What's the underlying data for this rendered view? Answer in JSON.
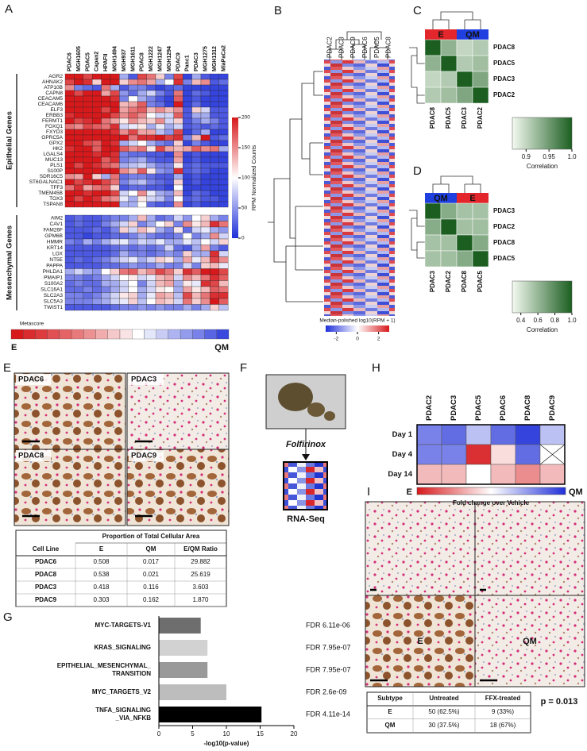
{
  "panel_a": {
    "label": "A",
    "columns": [
      "PDAC6",
      "MGH1605",
      "PDAC5",
      "Capan2",
      "HPAFII",
      "MGH1494",
      "MGH937",
      "MGH1611",
      "PDAC8",
      "MGH1222",
      "MGH1247",
      "MGH1294",
      "PDAC9",
      "Panc1",
      "PDAC3",
      "MGH1275",
      "MGH1312",
      "MiaPaCa2"
    ],
    "epithelial": {
      "title": "Epithelial  Genes",
      "genes": [
        "AGR2",
        "AHNAK2",
        "ATP10B",
        "CAPN8",
        "CEACAM5",
        "CEACAM6",
        "ELF3",
        "ERBB3",
        "FERMT1",
        "FOXQ1",
        "FXYD3",
        "GPRC5A",
        "GPX2",
        "HK2",
        "LGALS4",
        "MUC13",
        "PLS1",
        "S100P",
        "SDR16C5",
        "ST6GALNAC1",
        "TFF3",
        "TMEM45B",
        "TOX3",
        "TSPAN8"
      ],
      "values": [
        [
          200,
          200,
          180,
          200,
          200,
          200,
          60,
          20,
          180,
          160,
          120,
          40,
          180,
          10,
          60,
          20,
          10,
          10
        ],
        [
          180,
          200,
          190,
          120,
          200,
          200,
          120,
          150,
          160,
          140,
          60,
          100,
          190,
          40,
          130,
          150,
          20,
          30
        ],
        [
          150,
          40,
          30,
          20,
          160,
          60,
          20,
          40,
          40,
          20,
          10,
          20,
          30,
          10,
          10,
          10,
          10,
          10
        ],
        [
          200,
          180,
          200,
          200,
          140,
          180,
          50,
          30,
          60,
          80,
          40,
          20,
          160,
          10,
          30,
          20,
          10,
          10
        ],
        [
          200,
          200,
          200,
          200,
          200,
          190,
          40,
          100,
          60,
          40,
          20,
          10,
          170,
          10,
          20,
          10,
          10,
          10
        ],
        [
          200,
          200,
          200,
          200,
          200,
          200,
          130,
          140,
          170,
          40,
          30,
          10,
          200,
          10,
          30,
          10,
          10,
          10
        ],
        [
          200,
          200,
          200,
          200,
          180,
          200,
          140,
          160,
          170,
          130,
          150,
          130,
          150,
          20,
          120,
          80,
          20,
          20
        ],
        [
          190,
          200,
          200,
          200,
          200,
          180,
          150,
          170,
          150,
          100,
          80,
          80,
          170,
          20,
          60,
          60,
          20,
          20
        ],
        [
          200,
          180,
          190,
          200,
          160,
          140,
          110,
          150,
          130,
          120,
          150,
          80,
          120,
          20,
          40,
          60,
          40,
          20
        ],
        [
          160,
          150,
          180,
          170,
          160,
          190,
          80,
          90,
          110,
          60,
          90,
          60,
          80,
          20,
          30,
          20,
          30,
          20
        ],
        [
          200,
          200,
          200,
          200,
          200,
          190,
          150,
          180,
          140,
          140,
          70,
          50,
          180,
          10,
          30,
          60,
          10,
          10
        ],
        [
          200,
          200,
          200,
          200,
          200,
          200,
          200,
          160,
          190,
          190,
          200,
          180,
          190,
          40,
          130,
          200,
          20,
          30
        ],
        [
          200,
          200,
          180,
          170,
          200,
          190,
          60,
          80,
          100,
          60,
          40,
          30,
          120,
          10,
          40,
          20,
          10,
          10
        ],
        [
          190,
          200,
          200,
          170,
          200,
          200,
          170,
          150,
          160,
          110,
          180,
          140,
          130,
          140,
          170,
          150,
          160,
          60
        ],
        [
          200,
          200,
          200,
          190,
          200,
          190,
          40,
          30,
          30,
          20,
          20,
          10,
          150,
          10,
          20,
          10,
          10,
          10
        ],
        [
          200,
          200,
          200,
          200,
          170,
          190,
          40,
          50,
          60,
          30,
          20,
          20,
          140,
          10,
          20,
          10,
          10,
          10
        ],
        [
          200,
          180,
          200,
          190,
          170,
          160,
          60,
          70,
          80,
          60,
          40,
          40,
          110,
          20,
          30,
          20,
          20,
          20
        ],
        [
          200,
          200,
          200,
          200,
          200,
          200,
          150,
          130,
          170,
          110,
          50,
          40,
          190,
          20,
          30,
          20,
          10,
          10
        ],
        [
          150,
          140,
          200,
          120,
          60,
          160,
          30,
          40,
          40,
          30,
          20,
          20,
          60,
          10,
          20,
          10,
          10,
          10
        ],
        [
          200,
          180,
          190,
          200,
          180,
          160,
          40,
          60,
          70,
          40,
          30,
          20,
          120,
          10,
          20,
          10,
          10,
          10
        ],
        [
          160,
          190,
          140,
          160,
          170,
          120,
          20,
          30,
          30,
          20,
          20,
          10,
          100,
          10,
          10,
          10,
          10,
          10
        ],
        [
          200,
          200,
          190,
          200,
          200,
          180,
          80,
          100,
          150,
          90,
          60,
          50,
          130,
          10,
          30,
          20,
          10,
          10
        ],
        [
          200,
          180,
          200,
          190,
          160,
          150,
          90,
          60,
          110,
          80,
          70,
          40,
          100,
          20,
          30,
          20,
          20,
          10
        ],
        [
          200,
          200,
          200,
          200,
          200,
          200,
          60,
          60,
          100,
          30,
          20,
          20,
          150,
          10,
          20,
          10,
          10,
          10
        ]
      ]
    },
    "mesenchymal": {
      "title": "Mesenchymal  Genes",
      "genes": [
        "AIM2",
        "CAV1",
        "FAM26F",
        "GPM6B",
        "HMMR",
        "KRT14",
        "LOX",
        "NT5E",
        "PAPPA",
        "PHLDA1",
        "PMAIP1",
        "S100A2",
        "SLC16A1",
        "SLC2A3",
        "SLC5A3",
        "TWIST1"
      ],
      "values": [
        [
          20,
          30,
          20,
          20,
          30,
          40,
          40,
          60,
          130,
          60,
          30,
          40,
          80,
          50,
          100,
          120,
          60,
          40
        ],
        [
          20,
          30,
          20,
          20,
          40,
          60,
          80,
          120,
          40,
          60,
          100,
          120,
          40,
          150,
          110,
          130,
          190,
          160
        ],
        [
          20,
          20,
          20,
          30,
          20,
          40,
          120,
          80,
          130,
          110,
          60,
          40,
          110,
          30,
          80,
          90,
          60,
          50
        ],
        [
          20,
          20,
          10,
          20,
          20,
          30,
          30,
          40,
          60,
          40,
          30,
          30,
          40,
          100,
          40,
          60,
          150,
          80
        ],
        [
          40,
          30,
          60,
          40,
          60,
          80,
          90,
          60,
          80,
          70,
          90,
          60,
          60,
          90,
          70,
          100,
          80,
          120
        ],
        [
          20,
          20,
          20,
          20,
          20,
          30,
          40,
          30,
          40,
          30,
          40,
          80,
          30,
          20,
          60,
          140,
          40,
          20
        ],
        [
          20,
          20,
          20,
          20,
          20,
          30,
          60,
          40,
          40,
          30,
          40,
          50,
          40,
          120,
          60,
          60,
          190,
          80
        ],
        [
          20,
          30,
          20,
          30,
          40,
          60,
          80,
          90,
          60,
          80,
          120,
          110,
          60,
          140,
          90,
          130,
          180,
          150
        ],
        [
          20,
          20,
          20,
          20,
          30,
          30,
          40,
          50,
          40,
          40,
          60,
          40,
          40,
          80,
          40,
          120,
          130,
          90
        ],
        [
          60,
          80,
          60,
          50,
          100,
          120,
          160,
          170,
          130,
          150,
          180,
          160,
          120,
          190,
          170,
          200,
          200,
          180
        ],
        [
          40,
          40,
          30,
          40,
          60,
          80,
          100,
          110,
          80,
          90,
          130,
          140,
          80,
          150,
          130,
          160,
          190,
          170
        ],
        [
          30,
          40,
          30,
          30,
          60,
          60,
          80,
          100,
          40,
          80,
          130,
          140,
          60,
          110,
          90,
          190,
          180,
          130
        ],
        [
          30,
          30,
          40,
          30,
          40,
          60,
          80,
          100,
          60,
          80,
          110,
          100,
          60,
          140,
          110,
          130,
          170,
          160
        ],
        [
          40,
          40,
          30,
          40,
          60,
          80,
          110,
          120,
          60,
          90,
          140,
          130,
          70,
          180,
          130,
          160,
          190,
          190
        ],
        [
          40,
          40,
          40,
          50,
          60,
          80,
          90,
          120,
          70,
          100,
          130,
          120,
          80,
          160,
          120,
          150,
          200,
          170
        ],
        [
          20,
          20,
          20,
          20,
          20,
          30,
          40,
          40,
          50,
          40,
          50,
          40,
          40,
          60,
          40,
          60,
          120,
          70
        ]
      ]
    },
    "colorbar": {
      "title": "RPM Normalized Counts",
      "lim": [
        0,
        200
      ],
      "ticks": [
        0,
        50,
        100,
        150,
        200
      ]
    },
    "metascore": {
      "label": "Metascore",
      "values": [
        200,
        192,
        185,
        176,
        168,
        158,
        148,
        136,
        124,
        112,
        100,
        88,
        76,
        64,
        52,
        40,
        26,
        12
      ],
      "left": "E",
      "right": "QM"
    }
  },
  "panel_b": {
    "label": "B",
    "columns": [
      "PDAC2",
      "PDAC3",
      "PDAC9",
      "PDAC6",
      "PDAC5",
      "PDAC8"
    ],
    "colorbar": {
      "title": "Median-polished log10(RPM + 1)",
      "lim": [
        -3,
        3
      ],
      "ticks": [
        -2,
        0,
        2
      ]
    }
  },
  "panel_c": {
    "label": "C",
    "rows": [
      "PDAC8",
      "PDAC5",
      "PDAC3",
      "PDAC2"
    ],
    "groups": [
      {
        "label": "E",
        "color": "#e3262b"
      },
      {
        "label": "QM",
        "color": "#1f3fe0"
      }
    ],
    "values": [
      [
        1,
        0.93,
        0.9,
        0.91
      ],
      [
        0.93,
        1,
        0.91,
        0.92
      ],
      [
        0.9,
        0.91,
        1,
        0.94
      ],
      [
        0.91,
        0.92,
        0.94,
        1
      ]
    ],
    "colorbar": {
      "title": "Correlation",
      "lim": [
        0.87,
        1
      ],
      "ticks": [
        0.9,
        0.95,
        {
          "value": 1,
          "label": "1.0"
        }
      ]
    }
  },
  "panel_d": {
    "label": "D",
    "rows": [
      "PDAC3",
      "PDAC2",
      "PDAC8",
      "PDAC5"
    ],
    "groups": [
      {
        "label": "QM",
        "color": "#1f3fe0"
      },
      {
        "label": "E",
        "color": "#e3262b"
      }
    ],
    "values": [
      [
        1,
        0.65,
        0.55,
        0.55
      ],
      [
        0.65,
        1,
        0.56,
        0.57
      ],
      [
        0.55,
        0.56,
        1,
        0.66
      ],
      [
        0.55,
        0.57,
        0.66,
        1
      ]
    ],
    "colorbar": {
      "title": "Correlation",
      "lim": [
        0.3,
        1
      ],
      "ticks": [
        0.4,
        0.6,
        0.8,
        {
          "value": 1,
          "label": "1.0"
        }
      ]
    }
  },
  "panel_e": {
    "label": "E",
    "images": [
      "PDAC6",
      "PDAC3",
      "PDAC8",
      "PDAC9"
    ],
    "table": {
      "title": "Proportion of Total Cellular Area",
      "header": [
        "Cell Line",
        "E",
        "QM",
        "E/QM Ratio"
      ],
      "rows": [
        [
          "PDAC6",
          "0.508",
          "0.017",
          "29.882"
        ],
        [
          "PDAC8",
          "0.538",
          "0.021",
          "25.619"
        ],
        [
          "PDAC3",
          "0.418",
          "0.116",
          "3.603"
        ],
        [
          "PDAC9",
          "0.303",
          "0.162",
          "1.870"
        ]
      ]
    }
  },
  "panel_f": {
    "label": "F",
    "treatment": "Folfirinox",
    "assay": "RNA-Seq"
  },
  "panel_g": {
    "label": "G",
    "type": "bar",
    "orientation": "horizontal",
    "categories": [
      [
        "MYC-TARGETS-V1"
      ],
      [
        "KRAS_SIGNALING"
      ],
      [
        "EPITHELIAL_MESENCHYMAL_",
        "TRANSITION"
      ],
      [
        "MYC_TARGETS_V2"
      ],
      [
        "TNFA_SIGNALING",
        "_VIA_NFKB"
      ]
    ],
    "values": [
      6.2,
      7.2,
      7.2,
      10,
      15.2
    ],
    "colors": [
      "#6e6e6e",
      "#d2d2d2",
      "#9a9a9a",
      "#bdbdbd",
      "#000000"
    ],
    "annotations": [
      "FDR 6.11e-06",
      "FDR 7.95e-07",
      "FDR 7.95e-07",
      "FDR 2.6e-09",
      "FDR 4.11e-14"
    ],
    "xlim": [
      0,
      20
    ],
    "xticks": [
      0,
      5,
      10,
      15,
      20
    ],
    "xlabel": "-log10(p-value)"
  },
  "panel_h": {
    "label": "H",
    "columns": [
      "PDAC2",
      "PDAC3",
      "PDAC5",
      "PDAC6",
      "PDAC8",
      "PDAC9"
    ],
    "rows": [
      "Day 1",
      "Day 4",
      "Day 14"
    ],
    "values": [
      [
        0.6,
        0.7,
        0.3,
        0.7,
        0.9,
        0.3
      ],
      [
        0.6,
        0.6,
        -0.9,
        -0.15,
        0.7,
        null
      ],
      [
        -0.3,
        -0.3,
        0,
        -0.3,
        -0.5,
        -0.3
      ]
    ],
    "lim": [
      -1,
      1
    ],
    "legend": {
      "left": "E",
      "title": "Fold change over Vehicle",
      "right": "QM"
    }
  },
  "panel_i": {
    "label": "I",
    "image_labels": [
      "E",
      "QM"
    ],
    "table": {
      "header": [
        "Subtype",
        "Untreated",
        "FFX-treated"
      ],
      "rows": [
        [
          "E",
          "50 (62.5%)",
          "9 (33%)"
        ],
        [
          "QM",
          "30 (37.5%)",
          "18 (67%)"
        ]
      ]
    },
    "p_value": "p = 0.013"
  }
}
